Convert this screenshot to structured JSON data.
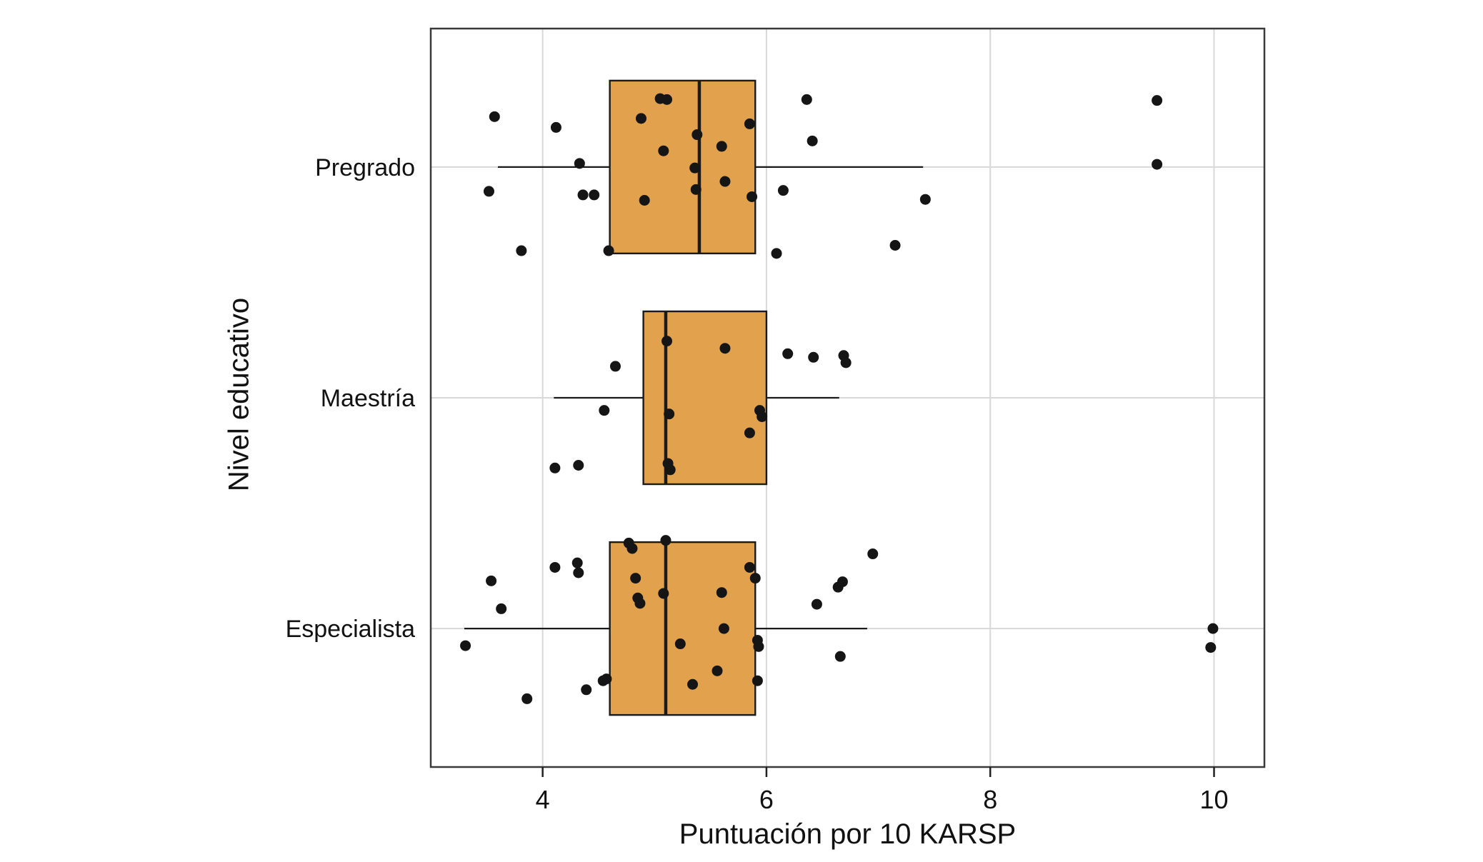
{
  "chart_data": {
    "type": "boxplot",
    "title": "",
    "xlabel": "Puntuación por 10 KARSP",
    "ylabel": "Nivel educativo",
    "x_ticks": [
      4,
      6,
      8,
      10
    ],
    "x_range": [
      3.0,
      10.45
    ],
    "grid": "on",
    "orientation": "horizontal",
    "categories": [
      "Pregrado",
      "Maestría",
      "Especialista"
    ],
    "boxes": [
      {
        "category": "Pregrado",
        "whisker_low": 3.6,
        "q1": 4.6,
        "median": 5.4,
        "q3": 5.9,
        "whisker_high": 7.4
      },
      {
        "category": "Maestría",
        "whisker_low": 4.1,
        "q1": 4.9,
        "median": 5.1,
        "q3": 6.0,
        "whisker_high": 6.65
      },
      {
        "category": "Especialista",
        "whisker_low": 3.3,
        "q1": 4.6,
        "median": 5.1,
        "q3": 5.9,
        "whisker_high": 6.9
      }
    ],
    "points": [
      [
        {
          "x": 3.52,
          "j": 0.27
        },
        {
          "x": 3.57,
          "j": -0.56
        },
        {
          "x": 3.81,
          "j": 0.93
        },
        {
          "x": 4.12,
          "j": -0.44
        },
        {
          "x": 4.33,
          "j": -0.04
        },
        {
          "x": 4.36,
          "j": 0.31
        },
        {
          "x": 4.46,
          "j": 0.31
        },
        {
          "x": 4.59,
          "j": 0.93
        },
        {
          "x": 4.88,
          "j": -0.54
        },
        {
          "x": 4.91,
          "j": 0.37
        },
        {
          "x": 5.05,
          "j": -0.76
        },
        {
          "x": 5.11,
          "j": -0.75
        },
        {
          "x": 5.08,
          "j": -0.18
        },
        {
          "x": 5.38,
          "j": -0.36
        },
        {
          "x": 5.36,
          "j": 0.01
        },
        {
          "x": 5.37,
          "j": 0.25
        },
        {
          "x": 5.6,
          "j": -0.23
        },
        {
          "x": 5.63,
          "j": 0.16
        },
        {
          "x": 5.85,
          "j": -0.48
        },
        {
          "x": 5.87,
          "j": 0.33
        },
        {
          "x": 6.09,
          "j": 0.96
        },
        {
          "x": 6.15,
          "j": 0.26
        },
        {
          "x": 6.36,
          "j": -0.75
        },
        {
          "x": 6.41,
          "j": -0.29
        },
        {
          "x": 7.15,
          "j": 0.87
        },
        {
          "x": 7.42,
          "j": 0.36
        },
        {
          "x": 9.49,
          "j": -0.74
        },
        {
          "x": 9.49,
          "j": -0.03
        }
      ],
      [
        {
          "x": 4.11,
          "j": 0.78
        },
        {
          "x": 4.32,
          "j": 0.75
        },
        {
          "x": 4.55,
          "j": 0.14
        },
        {
          "x": 4.65,
          "j": -0.35
        },
        {
          "x": 5.11,
          "j": -0.63
        },
        {
          "x": 5.13,
          "j": 0.18
        },
        {
          "x": 5.12,
          "j": 0.73
        },
        {
          "x": 5.14,
          "j": 0.8
        },
        {
          "x": 5.63,
          "j": -0.55
        },
        {
          "x": 5.85,
          "j": 0.39
        },
        {
          "x": 5.94,
          "j": 0.14
        },
        {
          "x": 5.96,
          "j": 0.21
        },
        {
          "x": 6.19,
          "j": -0.49
        },
        {
          "x": 6.42,
          "j": -0.45
        },
        {
          "x": 6.69,
          "j": -0.47
        },
        {
          "x": 6.71,
          "j": -0.39
        }
      ],
      [
        {
          "x": 3.31,
          "j": 0.19
        },
        {
          "x": 3.54,
          "j": -0.53
        },
        {
          "x": 3.63,
          "j": -0.22
        },
        {
          "x": 3.86,
          "j": 0.78
        },
        {
          "x": 4.11,
          "j": -0.68
        },
        {
          "x": 4.31,
          "j": -0.73
        },
        {
          "x": 4.32,
          "j": -0.62
        },
        {
          "x": 4.39,
          "j": 0.68
        },
        {
          "x": 4.54,
          "j": 0.58
        },
        {
          "x": 4.57,
          "j": 0.56
        },
        {
          "x": 4.77,
          "j": -0.95
        },
        {
          "x": 4.8,
          "j": -0.89
        },
        {
          "x": 4.83,
          "j": -0.56
        },
        {
          "x": 4.85,
          "j": -0.34
        },
        {
          "x": 4.87,
          "j": -0.28
        },
        {
          "x": 5.1,
          "j": -0.98
        },
        {
          "x": 5.08,
          "j": -0.39
        },
        {
          "x": 5.23,
          "j": 0.17
        },
        {
          "x": 5.34,
          "j": 0.62
        },
        {
          "x": 5.56,
          "j": 0.47
        },
        {
          "x": 5.6,
          "j": -0.4
        },
        {
          "x": 5.62,
          "j": 0.0
        },
        {
          "x": 5.85,
          "j": -0.68
        },
        {
          "x": 5.9,
          "j": -0.56
        },
        {
          "x": 5.92,
          "j": 0.13
        },
        {
          "x": 5.93,
          "j": 0.2
        },
        {
          "x": 5.92,
          "j": 0.58
        },
        {
          "x": 6.45,
          "j": -0.27
        },
        {
          "x": 6.64,
          "j": -0.46
        },
        {
          "x": 6.68,
          "j": -0.52
        },
        {
          "x": 6.66,
          "j": 0.31
        },
        {
          "x": 6.95,
          "j": -0.83
        },
        {
          "x": 9.99,
          "j": 0.0
        },
        {
          "x": 9.97,
          "j": 0.21
        }
      ]
    ],
    "colors": {
      "box_fill": "#E2A24D",
      "box_stroke": "#1A1A1A",
      "median": "#1A1A1A",
      "whisker": "#1A1A1A",
      "point": "#151515",
      "grid": "#D8D8D8",
      "panel_border": "#3A3A3A",
      "text": "#111111"
    }
  }
}
